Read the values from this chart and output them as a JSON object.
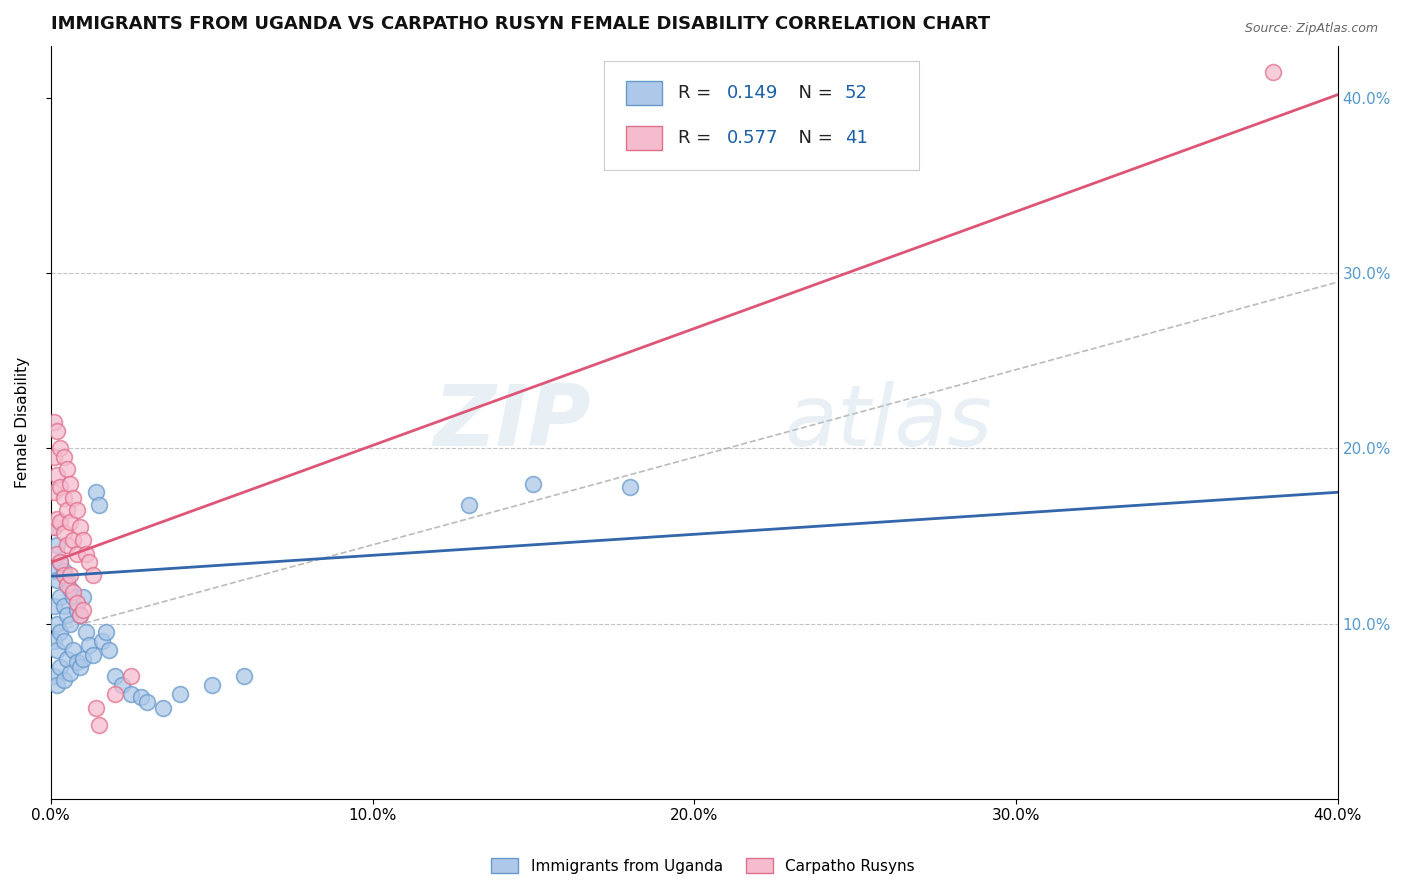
{
  "title": "IMMIGRANTS FROM UGANDA VS CARPATHO RUSYN FEMALE DISABILITY CORRELATION CHART",
  "source": "Source: ZipAtlas.com",
  "ylabel": "Female Disability",
  "xlim": [
    0.0,
    0.4
  ],
  "ylim": [
    0.0,
    0.43
  ],
  "xticks": [
    0.0,
    0.1,
    0.2,
    0.3,
    0.4
  ],
  "yticks_right": [
    0.1,
    0.2,
    0.3,
    0.4
  ],
  "watermark_text": "ZIP",
  "watermark_text2": "atlas",
  "series": [
    {
      "name": "Immigrants from Uganda",
      "color": "#adc8e8",
      "edge_color": "#6699cc",
      "R": 0.149,
      "N": 52,
      "line_color": "#3366aa",
      "x": [
        0.001,
        0.001,
        0.001,
        0.001,
        0.001,
        0.002,
        0.002,
        0.002,
        0.002,
        0.002,
        0.003,
        0.003,
        0.003,
        0.003,
        0.004,
        0.004,
        0.004,
        0.004,
        0.005,
        0.005,
        0.005,
        0.006,
        0.006,
        0.006,
        0.007,
        0.007,
        0.008,
        0.008,
        0.009,
        0.009,
        0.01,
        0.01,
        0.011,
        0.012,
        0.013,
        0.014,
        0.015,
        0.016,
        0.017,
        0.018,
        0.02,
        0.022,
        0.025,
        0.028,
        0.03,
        0.035,
        0.04,
        0.05,
        0.06,
        0.13,
        0.15,
        0.18
      ],
      "y": [
        0.155,
        0.13,
        0.11,
        0.09,
        0.07,
        0.145,
        0.125,
        0.1,
        0.085,
        0.065,
        0.135,
        0.115,
        0.095,
        0.075,
        0.13,
        0.11,
        0.09,
        0.068,
        0.125,
        0.105,
        0.08,
        0.12,
        0.1,
        0.072,
        0.115,
        0.085,
        0.108,
        0.078,
        0.105,
        0.075,
        0.115,
        0.08,
        0.095,
        0.088,
        0.082,
        0.175,
        0.168,
        0.09,
        0.095,
        0.085,
        0.07,
        0.065,
        0.06,
        0.058,
        0.055,
        0.052,
        0.06,
        0.065,
        0.07,
        0.168,
        0.18,
        0.178
      ]
    },
    {
      "name": "Carpatho Rusyns",
      "color": "#f5bcd0",
      "edge_color": "#e0708a",
      "R": 0.577,
      "N": 41,
      "line_color": "#dd5577",
      "x": [
        0.001,
        0.001,
        0.001,
        0.001,
        0.002,
        0.002,
        0.002,
        0.002,
        0.003,
        0.003,
        0.003,
        0.003,
        0.004,
        0.004,
        0.004,
        0.004,
        0.005,
        0.005,
        0.005,
        0.005,
        0.006,
        0.006,
        0.006,
        0.007,
        0.007,
        0.007,
        0.008,
        0.008,
        0.008,
        0.009,
        0.009,
        0.01,
        0.01,
        0.011,
        0.012,
        0.013,
        0.014,
        0.015,
        0.02,
        0.025,
        0.38
      ],
      "y": [
        0.215,
        0.195,
        0.175,
        0.155,
        0.21,
        0.185,
        0.16,
        0.14,
        0.2,
        0.178,
        0.158,
        0.135,
        0.195,
        0.172,
        0.152,
        0.128,
        0.188,
        0.165,
        0.145,
        0.122,
        0.18,
        0.158,
        0.128,
        0.172,
        0.148,
        0.118,
        0.165,
        0.14,
        0.112,
        0.155,
        0.105,
        0.148,
        0.108,
        0.14,
        0.135,
        0.128,
        0.052,
        0.042,
        0.06,
        0.07,
        0.415
      ]
    }
  ],
  "dashed_line_color": "#aaaaaa",
  "background_color": "#ffffff",
  "title_fontsize": 13,
  "axis_label_fontsize": 11,
  "tick_fontsize": 11,
  "right_tick_color": "#5599cc"
}
